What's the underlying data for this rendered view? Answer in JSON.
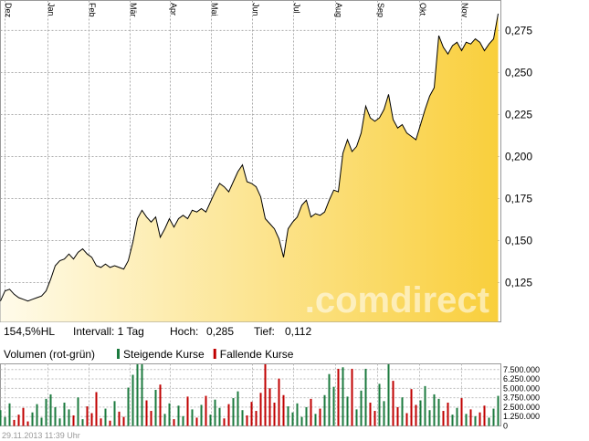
{
  "chart_data": [
    {
      "type": "area",
      "watermark": ".comdirect",
      "color": "#000000",
      "fill_from": "#fffbea",
      "fill_to": "#f9cf3c",
      "x": [
        0,
        1,
        2,
        3,
        4,
        5,
        6,
        7,
        8,
        9,
        10,
        11,
        12,
        13,
        14,
        15,
        16,
        17,
        18,
        19,
        20,
        21,
        22,
        23,
        24,
        25,
        26,
        27,
        28,
        29,
        30,
        31,
        32,
        33,
        34,
        35,
        36,
        37,
        38,
        39,
        40,
        41,
        42,
        43,
        44,
        45,
        46,
        47,
        48,
        49,
        50,
        51,
        52,
        53,
        54,
        55,
        56,
        57,
        58,
        59,
        60,
        61,
        62,
        63,
        64,
        65,
        66,
        67,
        68,
        69,
        70,
        71,
        72,
        73,
        74,
        75,
        76,
        77,
        78,
        79,
        80,
        81,
        82,
        83,
        84,
        85,
        86,
        87,
        88,
        89,
        90,
        91,
        92,
        93,
        94,
        95,
        96,
        97,
        98,
        99,
        100,
        101,
        102,
        103,
        104,
        105,
        106,
        107,
        108,
        109
      ],
      "values": [
        0.114,
        0.12,
        0.121,
        0.118,
        0.116,
        0.115,
        0.114,
        0.115,
        0.116,
        0.117,
        0.12,
        0.127,
        0.135,
        0.138,
        0.139,
        0.142,
        0.139,
        0.143,
        0.145,
        0.142,
        0.14,
        0.135,
        0.134,
        0.136,
        0.134,
        0.135,
        0.134,
        0.133,
        0.138,
        0.149,
        0.163,
        0.168,
        0.164,
        0.161,
        0.164,
        0.152,
        0.157,
        0.163,
        0.158,
        0.163,
        0.165,
        0.163,
        0.168,
        0.167,
        0.169,
        0.167,
        0.173,
        0.179,
        0.184,
        0.182,
        0.179,
        0.185,
        0.191,
        0.195,
        0.185,
        0.184,
        0.182,
        0.176,
        0.163,
        0.16,
        0.157,
        0.151,
        0.14,
        0.157,
        0.161,
        0.164,
        0.171,
        0.174,
        0.164,
        0.166,
        0.165,
        0.167,
        0.174,
        0.18,
        0.179,
        0.202,
        0.21,
        0.203,
        0.206,
        0.214,
        0.23,
        0.223,
        0.221,
        0.223,
        0.228,
        0.237,
        0.222,
        0.217,
        0.219,
        0.214,
        0.212,
        0.21,
        0.219,
        0.228,
        0.236,
        0.241,
        0.272,
        0.265,
        0.261,
        0.266,
        0.268,
        0.263,
        0.268,
        0.267,
        0.27,
        0.268,
        0.263,
        0.267,
        0.27,
        0.285
      ],
      "xlim": [
        0,
        109.6
      ],
      "xticks": [
        {
          "value": 1,
          "label": "Dez"
        },
        {
          "value": 10.4,
          "label": "Jan"
        },
        {
          "value": 19.4,
          "label": "Feb"
        },
        {
          "value": 28.4,
          "label": "Mär"
        },
        {
          "value": 37.2,
          "label": "Apr"
        },
        {
          "value": 46.2,
          "label": "Mai"
        },
        {
          "value": 55.2,
          "label": "Jun"
        },
        {
          "value": 64.2,
          "label": "Jul"
        },
        {
          "value": 73.4,
          "label": "Aug"
        },
        {
          "value": 82.6,
          "label": "Sep"
        },
        {
          "value": 91.8,
          "label": "Okt"
        },
        {
          "value": 101,
          "label": "Nov"
        }
      ],
      "ylim": [
        0.1016,
        0.2929
      ],
      "yticks": [
        {
          "value": 0.125,
          "label": "0,125"
        },
        {
          "value": 0.15,
          "label": "0,150"
        },
        {
          "value": 0.175,
          "label": "0,175"
        },
        {
          "value": 0.2,
          "label": "0,200"
        },
        {
          "value": 0.225,
          "label": "0,225"
        },
        {
          "value": 0.25,
          "label": "0,250"
        },
        {
          "value": 0.275,
          "label": "0,275"
        }
      ],
      "grid": true
    },
    {
      "type": "bar",
      "title": "Volumen (rot-grün)",
      "x": [
        0,
        1,
        2,
        3,
        4,
        5,
        6,
        7,
        8,
        9,
        10,
        11,
        12,
        13,
        14,
        15,
        16,
        17,
        18,
        19,
        20,
        21,
        22,
        23,
        24,
        25,
        26,
        27,
        28,
        29,
        30,
        31,
        32,
        33,
        34,
        35,
        36,
        37,
        38,
        39,
        40,
        41,
        42,
        43,
        44,
        45,
        46,
        47,
        48,
        49,
        50,
        51,
        52,
        53,
        54,
        55,
        56,
        57,
        58,
        59,
        60,
        61,
        62,
        63,
        64,
        65,
        66,
        67,
        68,
        69,
        70,
        71,
        72,
        73,
        74,
        75,
        76,
        77,
        78,
        79,
        80,
        81,
        82,
        83,
        84,
        85,
        86,
        87,
        88,
        89,
        90,
        91,
        92,
        93,
        94,
        95,
        96,
        97,
        98,
        99,
        100,
        101,
        102,
        103,
        104,
        105,
        106,
        107,
        108,
        109
      ],
      "series": [
        {
          "name": "Steigende Kurse",
          "color": "#1b7a3e",
          "values": [
            2100000,
            1200000,
            3000000,
            null,
            null,
            null,
            null,
            1800000,
            2900000,
            1100000,
            3600000,
            4200000,
            2500000,
            1000000,
            3100000,
            2200000,
            null,
            3800000,
            900000,
            null,
            null,
            null,
            null,
            2300000,
            null,
            3300000,
            null,
            null,
            5100000,
            6800000,
            8200000,
            8200000,
            null,
            null,
            4800000,
            null,
            1600000,
            3000000,
            null,
            2700000,
            1300000,
            null,
            2200000,
            null,
            2800000,
            null,
            1500000,
            3500000,
            2400000,
            null,
            null,
            3700000,
            4600000,
            2100000,
            null,
            null,
            null,
            null,
            null,
            null,
            null,
            null,
            null,
            2600000,
            1800000,
            3000000,
            1200000,
            2500000,
            null,
            1600000,
            null,
            4100000,
            6900000,
            5200000,
            null,
            7800000,
            3900000,
            null,
            2200000,
            4700000,
            7600000,
            null,
            null,
            5600000,
            3300000,
            8200000,
            null,
            null,
            3800000,
            null,
            null,
            null,
            3400000,
            5300000,
            2100000,
            4200000,
            3600000,
            null,
            null,
            1500000,
            2400000,
            null,
            1600000,
            null,
            1300000,
            null,
            null,
            1100000,
            2300000,
            4000000
          ]
        },
        {
          "name": "Fallende Kurse",
          "color": "#c00000",
          "values": [
            null,
            null,
            null,
            800000,
            1500000,
            2400000,
            600000,
            null,
            null,
            null,
            null,
            null,
            null,
            null,
            null,
            null,
            1400000,
            null,
            null,
            2600000,
            1700000,
            4500000,
            1000000,
            null,
            700000,
            null,
            1900000,
            1200000,
            null,
            null,
            null,
            null,
            3400000,
            2000000,
            null,
            5500000,
            null,
            null,
            900000,
            null,
            null,
            3900000,
            null,
            1100000,
            null,
            4000000,
            null,
            null,
            null,
            1000000,
            2900000,
            null,
            null,
            null,
            1400000,
            3200000,
            2000000,
            4400000,
            8200000,
            5000000,
            3100000,
            6300000,
            4100000,
            null,
            null,
            null,
            null,
            null,
            3600000,
            null,
            2300000,
            null,
            null,
            null,
            7600000,
            null,
            null,
            7600000,
            null,
            null,
            null,
            3100000,
            2000000,
            null,
            null,
            null,
            6000000,
            2500000,
            null,
            1700000,
            4900000,
            2800000,
            null,
            null,
            null,
            null,
            null,
            2000000,
            3100000,
            null,
            null,
            3700000,
            null,
            2200000,
            null,
            1800000,
            2700000,
            null,
            null,
            null
          ]
        }
      ],
      "xlim": [
        0,
        109.6
      ],
      "ylim": [
        0,
        8260000
      ],
      "yticks": [
        0,
        {
          "value": 1250000,
          "label": "1.250.000"
        },
        {
          "value": 2500000,
          "label": "2.500.000"
        },
        {
          "value": 3750000,
          "label": "3.750.000"
        },
        {
          "value": 5000000,
          "label": "5.000.000"
        },
        {
          "value": 6250000,
          "label": "6.250.000"
        },
        {
          "value": 7500000,
          "label": "7.500.000"
        }
      ],
      "grid": true
    }
  ],
  "info": {
    "change": "154,5%HL",
    "interval": "Intervall: 1 Tag",
    "high_label": "Hoch:",
    "high": "0,285",
    "low_label": "Tief:",
    "low": "0,112"
  },
  "timestamp": "29.11.2013 11:39 Uhr"
}
